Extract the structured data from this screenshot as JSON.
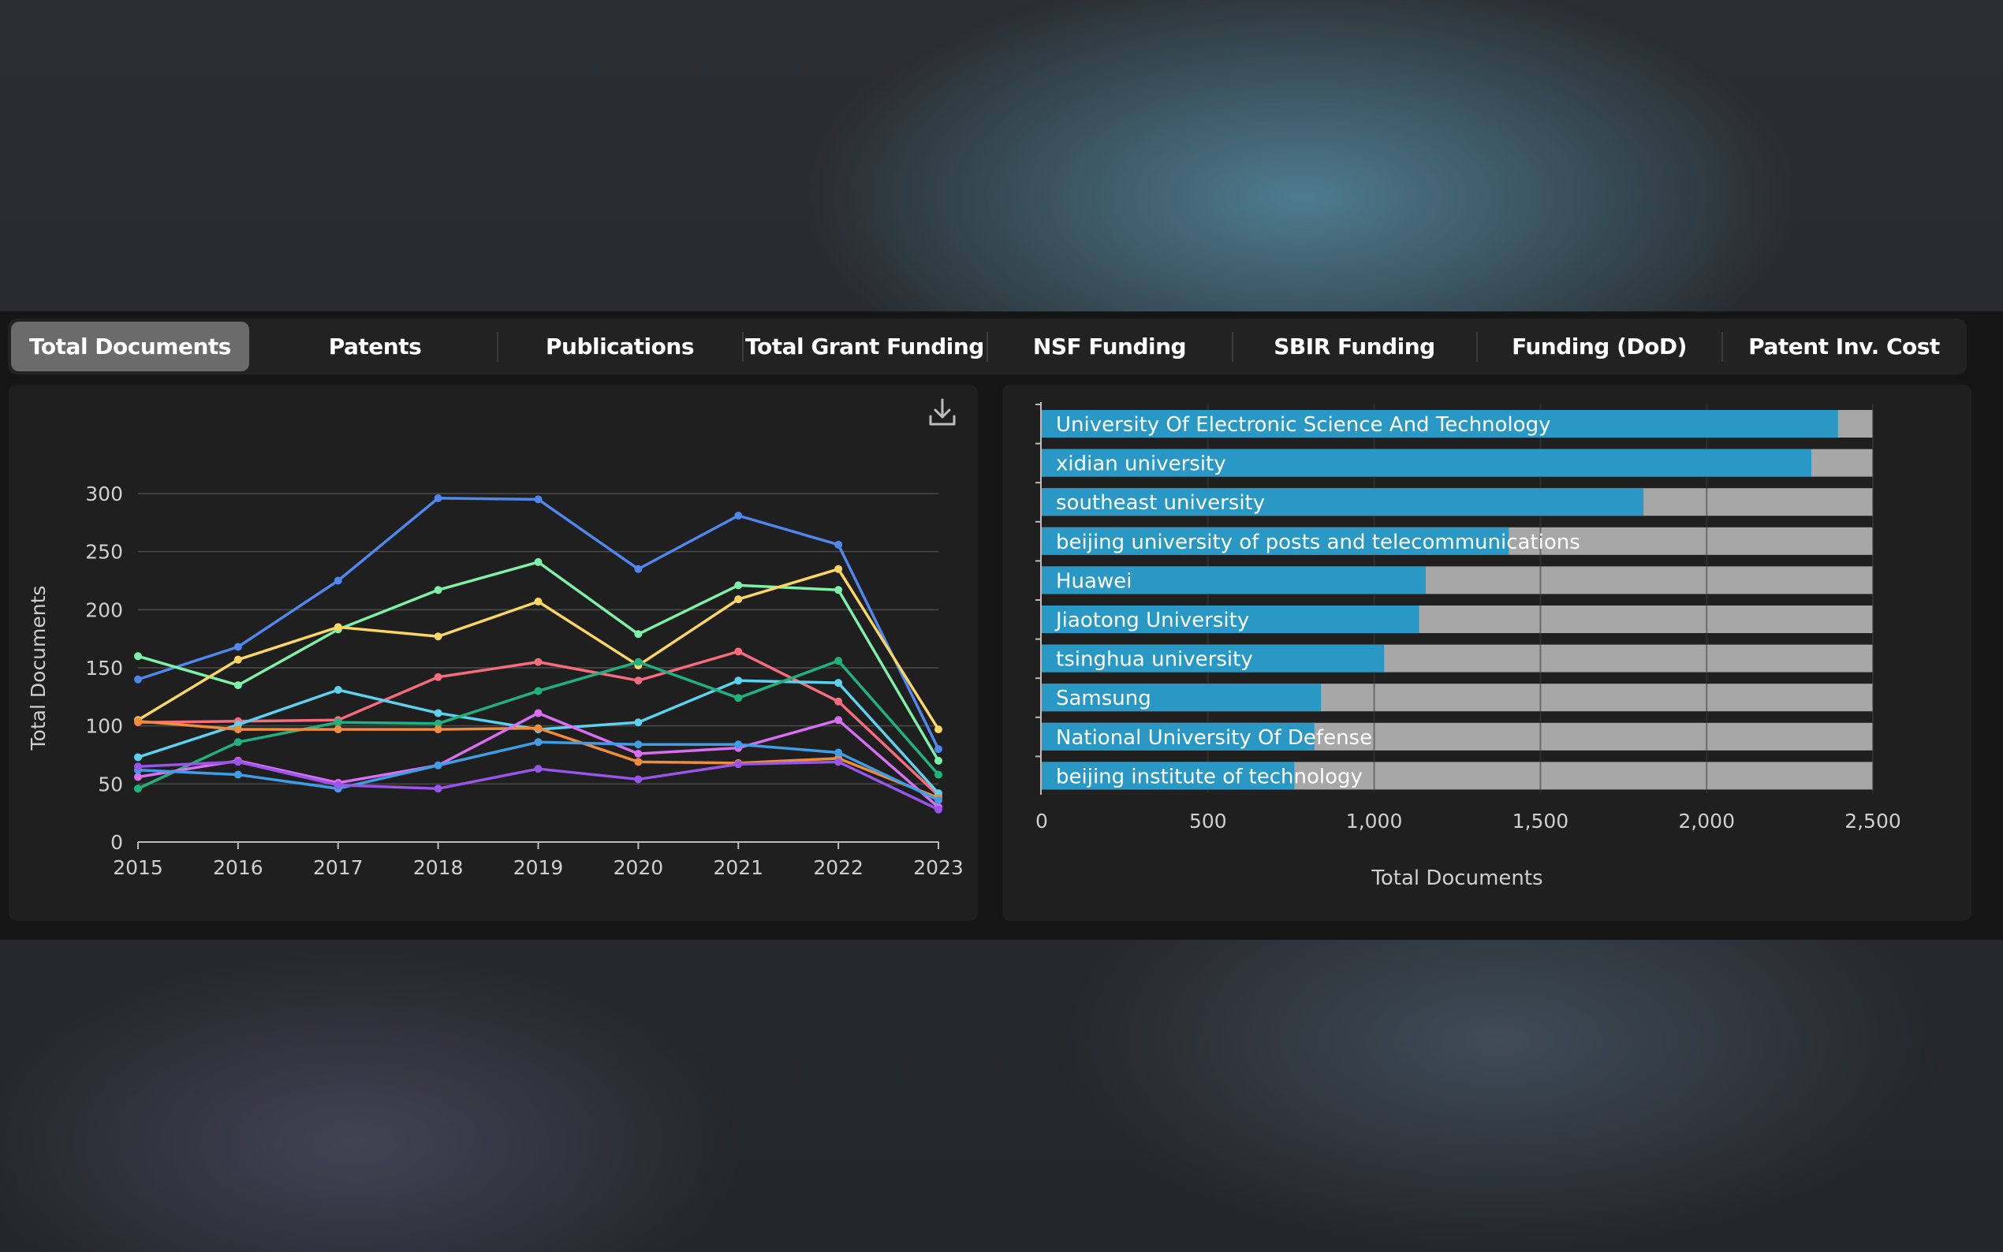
{
  "tabs": [
    {
      "label": "Total Documents",
      "active": true
    },
    {
      "label": "Patents",
      "active": false
    },
    {
      "label": "Publications",
      "active": false
    },
    {
      "label": "Total Grant Funding",
      "active": false
    },
    {
      "label": "NSF Funding",
      "active": false
    },
    {
      "label": "SBIR Funding",
      "active": false
    },
    {
      "label": "Funding (DoD)",
      "active": false
    },
    {
      "label": "Patent Inv. Cost",
      "active": false
    }
  ],
  "toolbar": {
    "download_icon": "download-icon"
  },
  "chart_data": [
    {
      "type": "line",
      "title": "",
      "xlabel": "",
      "ylabel": "Total Documents",
      "x": [
        2015,
        2016,
        2017,
        2018,
        2019,
        2020,
        2021,
        2022,
        2023
      ],
      "ylim": [
        0,
        300
      ],
      "yticks": [
        0,
        50,
        100,
        150,
        200,
        250,
        300
      ],
      "grid": true,
      "series": [
        {
          "color": "#4f87ec",
          "values": [
            140,
            168,
            225,
            296,
            295,
            235,
            281,
            256,
            80
          ]
        },
        {
          "color": "#7ef0a8",
          "values": [
            160,
            135,
            183,
            217,
            241,
            179,
            221,
            217,
            70
          ]
        },
        {
          "color": "#fbd665",
          "values": [
            105,
            157,
            185,
            177,
            207,
            152,
            209,
            235,
            97
          ]
        },
        {
          "color": "#f56c7d",
          "values": [
            103,
            104,
            105,
            142,
            155,
            139,
            164,
            121,
            40
          ]
        },
        {
          "color": "#5dd1ee",
          "values": [
            73,
            101,
            131,
            111,
            97,
            103,
            139,
            137,
            42
          ]
        },
        {
          "color": "#1fb27e",
          "values": [
            46,
            86,
            103,
            102,
            130,
            155,
            124,
            156,
            58
          ]
        },
        {
          "color": "#f08d3c",
          "values": [
            104,
            97,
            97,
            97,
            98,
            69,
            68,
            72,
            38
          ]
        },
        {
          "color": "#d86ef0",
          "values": [
            56,
            70,
            51,
            66,
            111,
            76,
            81,
            105,
            30
          ]
        },
        {
          "color": "#3f9de6",
          "values": [
            62,
            58,
            46,
            66,
            86,
            84,
            84,
            77,
            36
          ]
        },
        {
          "color": "#9954e8",
          "values": [
            65,
            69,
            49,
            46,
            63,
            54,
            67,
            69,
            28
          ]
        }
      ]
    },
    {
      "type": "bar",
      "orientation": "horizontal",
      "title": "",
      "xlabel": "Total Documents",
      "ylabel": "",
      "xlim": [
        0,
        2500
      ],
      "xticks": [
        "0",
        "500",
        "1,000",
        "1,500",
        "2,000",
        "2,500"
      ],
      "grid": true,
      "bar_color": "#2a98c4",
      "track_color": "#a7a7a7",
      "categories": [
        "University Of Electronic Science And Technology",
        "xidian university",
        "southeast university",
        "beijing university of posts and telecommunications",
        "Huawei",
        "Jiaotong University",
        "tsinghua university",
        "Samsung",
        "National University Of Defense",
        "beijing institute of technology"
      ],
      "values": [
        2395,
        2315,
        1810,
        1405,
        1155,
        1135,
        1030,
        840,
        820,
        760
      ]
    }
  ]
}
